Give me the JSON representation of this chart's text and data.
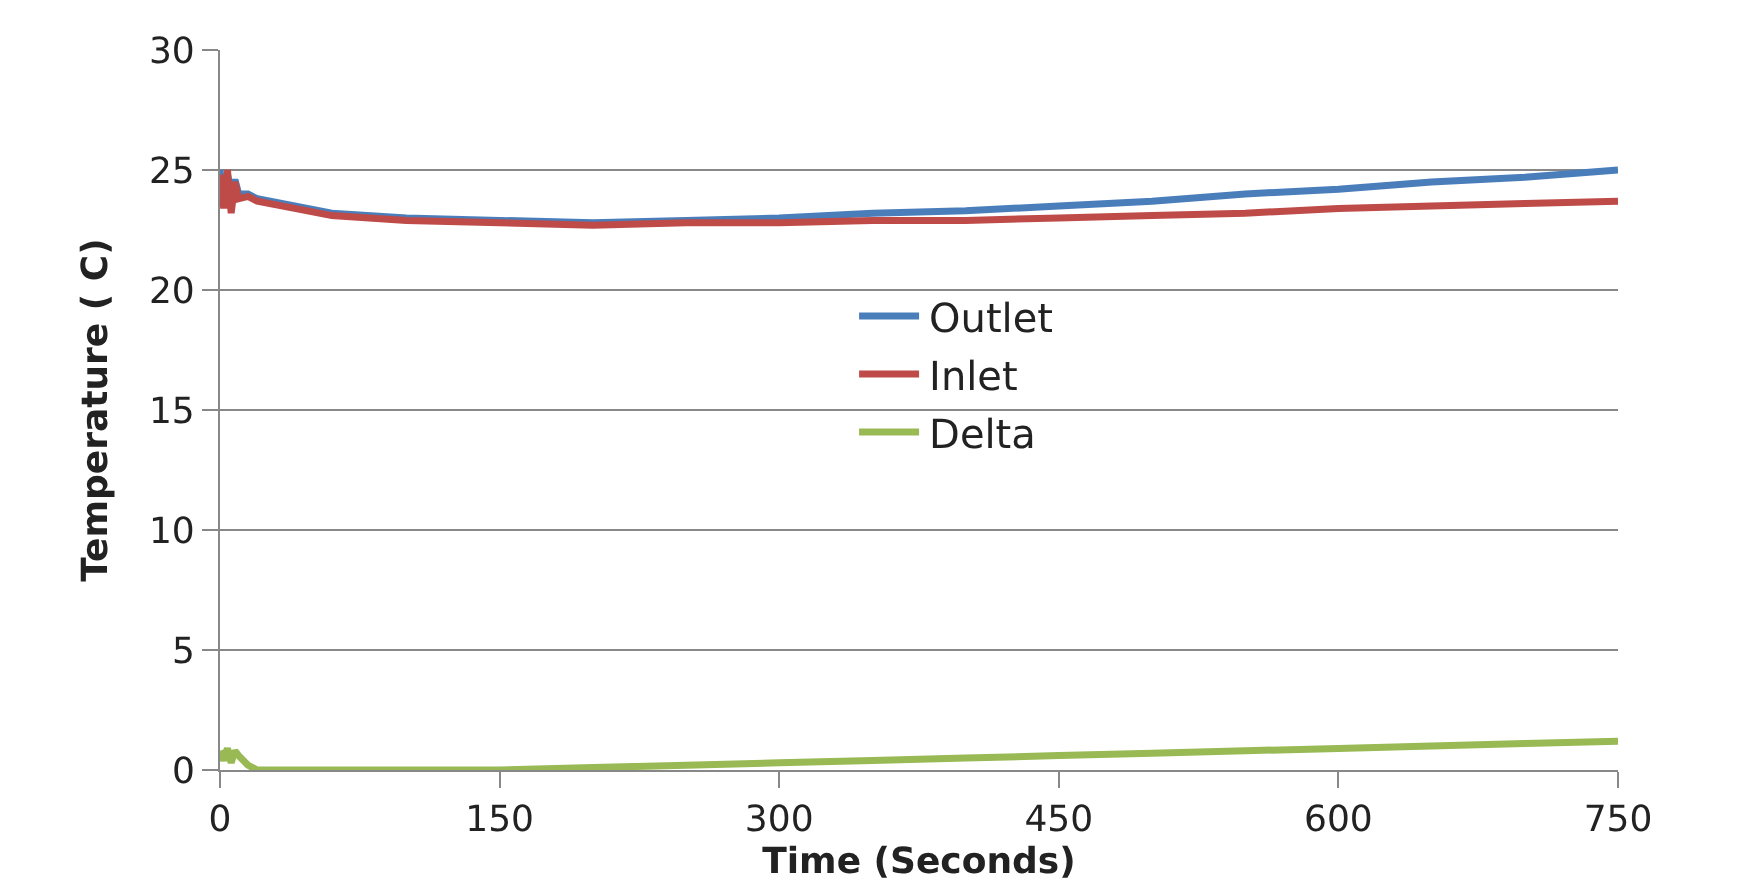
{
  "chart_data": {
    "type": "line",
    "xlabel": "Time (Seconds)",
    "ylabel": "Temperature ( C)",
    "xlim": [
      0,
      750
    ],
    "xticks": [
      0,
      150,
      300,
      450,
      600,
      750
    ],
    "ylim": [
      0,
      30
    ],
    "yticks": [
      0,
      5,
      10,
      15,
      20,
      25,
      30
    ],
    "grid": "y",
    "legend": "center",
    "marker": "none",
    "line_style": "solid",
    "x": [
      0,
      2,
      4,
      6,
      8,
      10,
      15,
      20,
      40,
      60,
      100,
      150,
      200,
      250,
      300,
      350,
      400,
      450,
      500,
      550,
      600,
      650,
      700,
      750
    ],
    "series": [
      {
        "name": "Outlet",
        "color": "#4a7ebb",
        "values": [
          25.0,
          23.6,
          24.8,
          24.1,
          24.6,
          24.0,
          24.0,
          23.8,
          23.5,
          23.2,
          23.0,
          22.9,
          22.8,
          22.9,
          23.0,
          23.2,
          23.3,
          23.5,
          23.7,
          24.0,
          24.2,
          24.5,
          24.7,
          25.0
        ]
      },
      {
        "name": "Inlet",
        "color": "#be4b48",
        "values": [
          24.8,
          23.4,
          25.0,
          23.2,
          24.5,
          23.8,
          23.9,
          23.7,
          23.4,
          23.1,
          22.9,
          22.8,
          22.7,
          22.8,
          22.8,
          22.9,
          22.9,
          23.0,
          23.1,
          23.2,
          23.4,
          23.5,
          23.6,
          23.7
        ]
      },
      {
        "name": "Delta",
        "color": "#98b954",
        "values": [
          0.8,
          0.4,
          0.9,
          0.3,
          0.8,
          0.6,
          0.2,
          0.0,
          0.0,
          0.0,
          0.0,
          0.0,
          0.1,
          0.2,
          0.3,
          0.4,
          0.5,
          0.6,
          0.7,
          0.8,
          0.9,
          1.0,
          1.1,
          1.2
        ]
      }
    ]
  }
}
